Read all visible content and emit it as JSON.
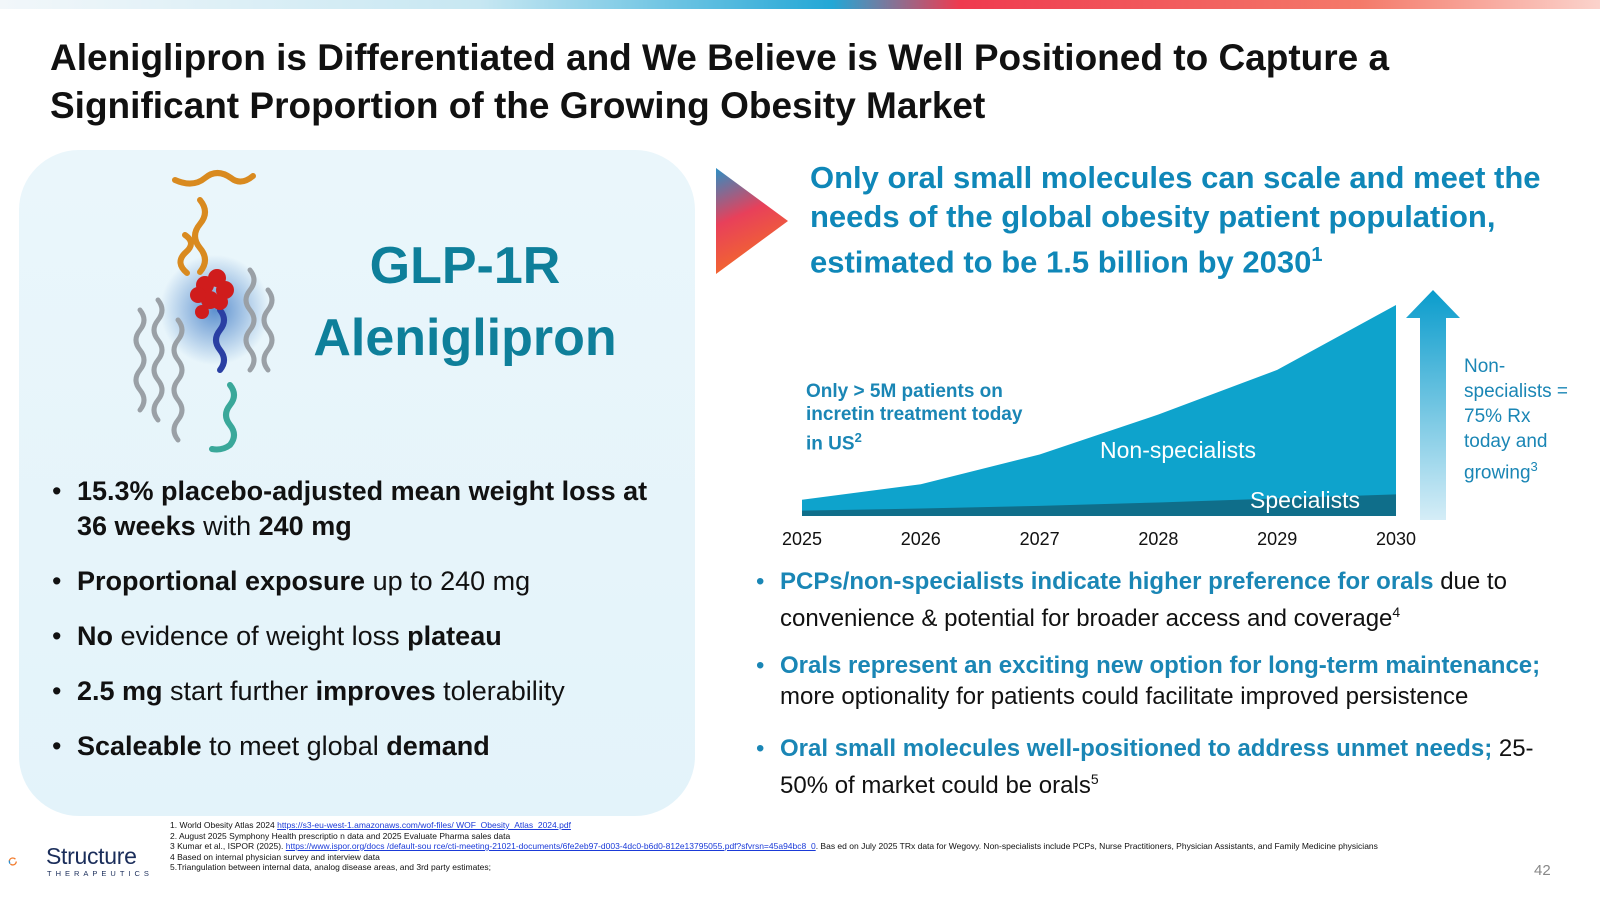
{
  "slide": {
    "title": "Aleniglipron is Differentiated and We Believe is Well Positioned to Capture a Significant Proportion of the Growing Obesity Market",
    "page_number": "42"
  },
  "left_panel": {
    "target": "GLP-1R",
    "drug": "Aleniglipron",
    "bullets": [
      {
        "p1_bold": "15.3% placebo-adjusted mean weight loss at 36 weeks",
        "p2": " with ",
        "p3_bold": "240 mg",
        "p4": "",
        "p5_bold": "",
        "p6": ""
      },
      {
        "p1_bold": "Proportional exposure",
        "p2": " up to 240 mg",
        "p3_bold": "",
        "p4": "",
        "p5_bold": "",
        "p6": ""
      },
      {
        "p1_bold": "No",
        "p2": " evidence of weight loss ",
        "p3_bold": "plateau",
        "p4": "",
        "p5_bold": "",
        "p6": ""
      },
      {
        "p1_bold": "2.5 mg",
        "p2": " start further ",
        "p3_bold": "improves",
        "p4": " tolerability",
        "p5_bold": "",
        "p6": ""
      },
      {
        "p1_bold": "Scaleable",
        "p2": " to meet global ",
        "p3_bold": "demand",
        "p4": "",
        "p5_bold": "",
        "p6": ""
      }
    ]
  },
  "right_panel": {
    "headline": "Only oral small molecules can scale and meet the needs of the global obesity patient population, estimated to be 1.5 billion by 2030",
    "headline_sup": "1",
    "annotation_left": "Only > 5M patients on incretin treatment today in US",
    "annotation_left_sup": "2",
    "annotation_right": "Non-specialists = 75% Rx today and growing",
    "annotation_right_sup": "3",
    "bullets": [
      {
        "bold": "PCPs/non-specialists indicate higher preference for orals",
        "text": " due to convenience & potential for broader access and coverage",
        "sup": "4"
      },
      {
        "bold": "Orals represent an exciting new option for long-term maintenance;",
        "text": " more optionality for patients could facilitate improved persistence",
        "sup": ""
      },
      {
        "bold": "Oral small molecules well-positioned to address unmet needs;",
        "text": " 25-50% of market could be orals",
        "sup": "5"
      }
    ]
  },
  "chart_data": {
    "type": "area",
    "x": [
      "2025",
      "2026",
      "2027",
      "2028",
      "2029",
      "2030"
    ],
    "series": [
      {
        "name": "Specialists",
        "values": [
          4,
          5.5,
          7.5,
          10,
          13,
          16
        ]
      },
      {
        "name": "Non-specialists",
        "values": [
          8,
          18,
          38,
          65,
          95,
          140
        ]
      }
    ],
    "ylim": [
      0,
      170
    ],
    "axes_shown": {
      "y_axis": false,
      "grid": false
    },
    "colors": {
      "specialists": "#0f6e8a",
      "non_specialists": "#0ea3cc",
      "arrow_top": "#0a9ccc",
      "arrow_bottom": "#cbe9f5"
    }
  },
  "footnotes": [
    {
      "pre": "1. World Obesity Atlas 2024 ",
      "link": "https://s3-eu-west-1.amazonaws.com/wof-files/ WOF_Obesity_Atlas_2024.pdf",
      "post": ""
    },
    {
      "pre": "2. August 2025 Symphony Health prescriptio n data and  2025 Evaluate Pharma sales data",
      "link": "",
      "post": ""
    },
    {
      "pre": "3 Kumar et al., ISPOR (2025).  ",
      "link": "https://www.ispor.org/docs /default-sou rce/cti-meeting-21021-documents/6fe2eb97-d003-4dc0-b6d0-812e13795055.pdf?sfvrsn=45a94bc8_0",
      "post": ". Bas ed on July 2025 TRx data for Wegovy. Non-specialists include PCPs, Nurse Practitioners, Physician Assistants, and Family Medicine physicians"
    },
    {
      "pre": "4 Based on internal physician survey and interview data",
      "link": "",
      "post": ""
    },
    {
      "pre": "5.Triangulation between internal data, analog disease areas, and 3rd party estimates;",
      "link": "",
      "post": ""
    }
  ],
  "logo": {
    "name": "Structure",
    "sub": "THERAPEUTICS"
  }
}
